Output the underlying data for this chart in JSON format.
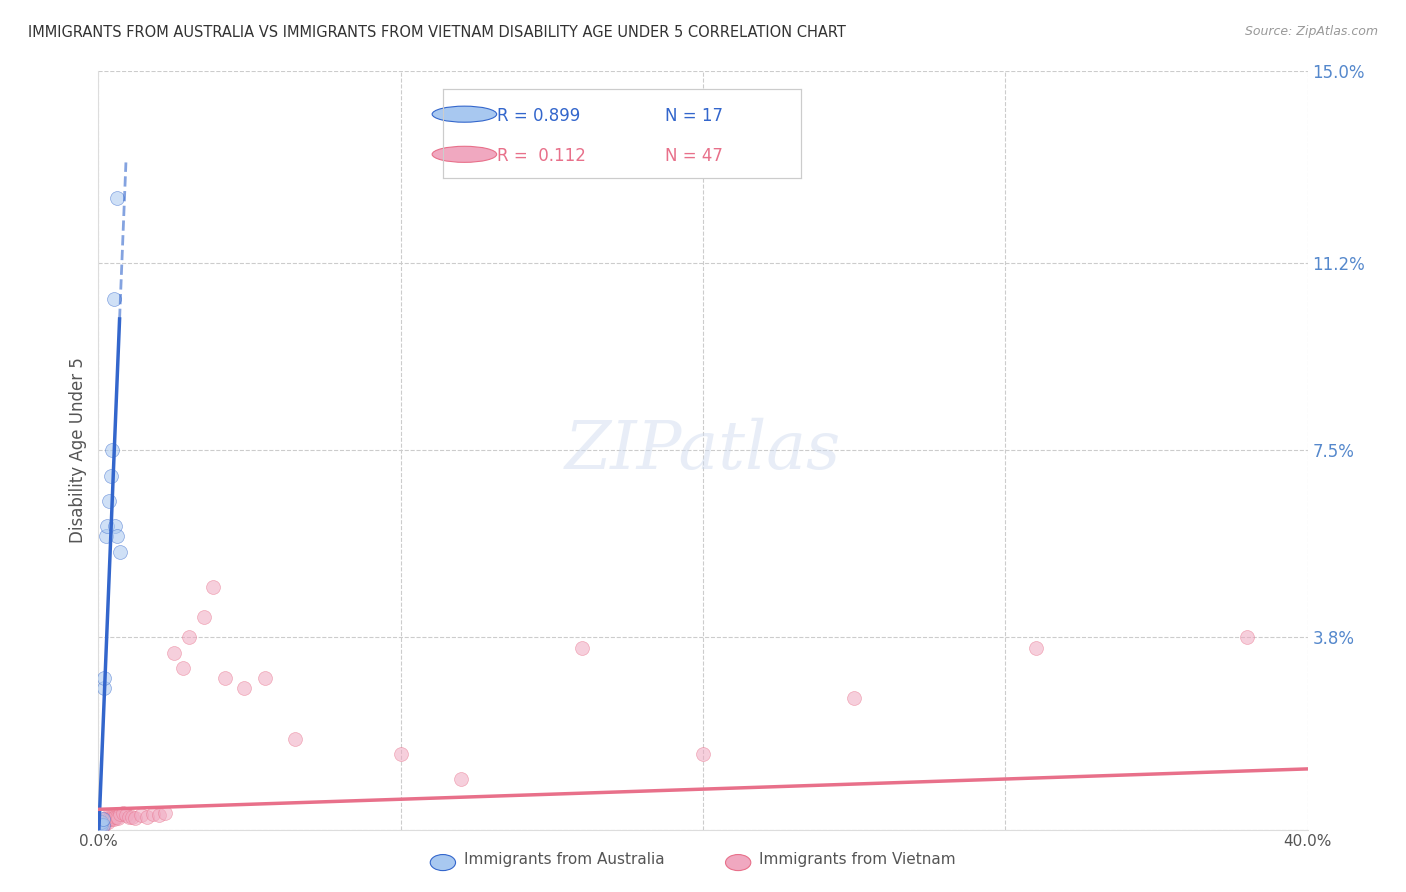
{
  "title": "IMMIGRANTS FROM AUSTRALIA VS IMMIGRANTS FROM VIETNAM DISABILITY AGE UNDER 5 CORRELATION CHART",
  "source": "Source: ZipAtlas.com",
  "ylabel": "Disability Age Under 5",
  "xlim": [
    0.0,
    0.4
  ],
  "ylim": [
    0.0,
    0.15
  ],
  "ytick_vals": [
    0.0,
    0.038,
    0.075,
    0.112,
    0.15
  ],
  "ytick_labels": [
    "",
    "3.8%",
    "7.5%",
    "11.2%",
    "15.0%"
  ],
  "xtick_vals": [
    0.0,
    0.1,
    0.2,
    0.3,
    0.4
  ],
  "xtick_labels": [
    "0.0%",
    "",
    "",
    "",
    "40.0%"
  ],
  "australia_color": "#a8c8f0",
  "vietnam_color": "#f0a8c0",
  "australia_line_color": "#3366cc",
  "vietnam_line_color": "#e8708a",
  "R_australia": 0.899,
  "N_australia": 17,
  "R_vietnam": 0.112,
  "N_vietnam": 47,
  "watermark": "ZIPatlas",
  "background_color": "#ffffff",
  "grid_color": "#cccccc",
  "axis_label_color": "#5588cc",
  "title_color": "#333333",
  "marker_size": 100,
  "marker_alpha": 0.55,
  "legend_color": "#5588cc",
  "source_color": "#999999"
}
